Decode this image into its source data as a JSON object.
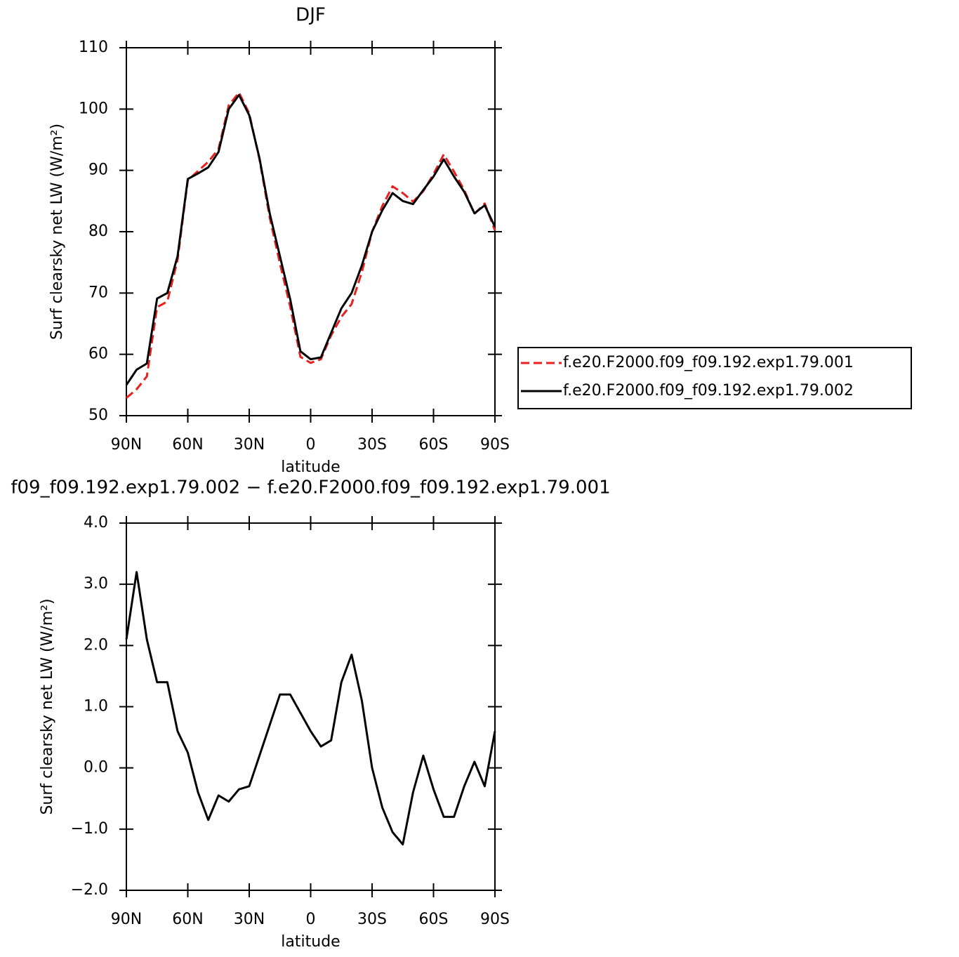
{
  "chart_data": [
    {
      "type": "line",
      "title": "DJF",
      "xlabel": "latitude",
      "ylabel": "Surf clearsky net LW (W/m²)",
      "x": [
        90,
        85,
        80,
        75,
        70,
        65,
        60,
        55,
        50,
        45,
        40,
        35,
        30,
        25,
        20,
        15,
        10,
        5,
        0,
        -5,
        -10,
        -15,
        -20,
        -25,
        -30,
        -35,
        -40,
        -45,
        -50,
        -55,
        -60,
        -65,
        -70,
        -75,
        -80,
        -85,
        -90
      ],
      "xlim": [
        90,
        -90
      ],
      "xticks": [
        {
          "value": 90,
          "label": "90N"
        },
        {
          "value": 60,
          "label": "60N"
        },
        {
          "value": 30,
          "label": "30N"
        },
        0,
        {
          "value": -30,
          "label": "30S"
        },
        {
          "value": -60,
          "label": "60S"
        },
        {
          "value": -90,
          "label": "90S"
        }
      ],
      "ylim": [
        50,
        110
      ],
      "yticks": [
        50,
        60,
        70,
        80,
        90,
        100,
        110
      ],
      "legend": "right",
      "series": [
        {
          "name": "f.e20.F2000.f09_f09.192.exp1.79.001",
          "color": "#e8201e",
          "dashed": true,
          "values": [
            52.9,
            54.3,
            56.4,
            67.7,
            68.6,
            75.4,
            88.4,
            89.9,
            91.4,
            93.5,
            100.6,
            102.7,
            99.3,
            91.8,
            82.3,
            74.8,
            67.8,
            59.6,
            58.6,
            59.2,
            63.1,
            66.1,
            68.2,
            73.4,
            80,
            84.2,
            87.4,
            86.3,
            84.9,
            86.6,
            89.4,
            92.6,
            89.8,
            86.8,
            82.9,
            84.6,
            80.2
          ]
        },
        {
          "name": "f.e20.F2000.f09_f09.192.exp1.79.002",
          "color": "#000000",
          "dashed": false,
          "values": [
            55.0,
            57.5,
            58.5,
            69.1,
            70,
            76,
            88.6,
            89.5,
            90.5,
            93,
            100,
            102.3,
            99,
            92,
            83,
            76,
            69,
            60.5,
            59.2,
            59.5,
            63.5,
            67.5,
            70,
            74.5,
            80,
            83.5,
            86.3,
            85.0,
            84.5,
            86.8,
            89,
            91.8,
            89,
            86.5,
            83,
            84.3,
            80.8
          ]
        }
      ]
    },
    {
      "type": "line",
      "title": "f09_f09.192.exp1.79.002 − f.e20.F2000.f09_f09.192.exp1.79.001",
      "xlabel": "latitude",
      "ylabel": "Surf clearsky net LW (W/m²)",
      "x": [
        90,
        85,
        80,
        75,
        70,
        65,
        60,
        55,
        50,
        45,
        40,
        35,
        30,
        25,
        20,
        15,
        10,
        5,
        0,
        -5,
        -10,
        -15,
        -20,
        -25,
        -30,
        -35,
        -40,
        -45,
        -50,
        -55,
        -60,
        -65,
        -70,
        -75,
        -80,
        -85,
        -90
      ],
      "xlim": [
        90,
        -90
      ],
      "xticks": [
        {
          "value": 90,
          "label": "90N"
        },
        {
          "value": 60,
          "label": "60N"
        },
        {
          "value": 30,
          "label": "30N"
        },
        0,
        {
          "value": -30,
          "label": "30S"
        },
        {
          "value": -60,
          "label": "60S"
        },
        {
          "value": -90,
          "label": "90S"
        }
      ],
      "ylim": [
        -2,
        4
      ],
      "yticks": [
        {
          "value": -2,
          "label": "−2.0"
        },
        {
          "value": -1,
          "label": "−1.0"
        },
        {
          "value": 0,
          "label": "0.0"
        },
        {
          "value": 1,
          "label": "1.0"
        },
        {
          "value": 2,
          "label": "2.0"
        },
        {
          "value": 3,
          "label": "3.0"
        },
        {
          "value": 4,
          "label": "4.0"
        }
      ],
      "color": "#000000",
      "values": [
        2.1,
        3.2,
        2.1,
        1.4,
        1.4,
        0.6,
        0.25,
        -0.4,
        -0.85,
        -0.45,
        -0.55,
        -0.35,
        -0.3,
        0.2,
        0.7,
        1.2,
        1.2,
        0.9,
        0.6,
        0.35,
        0.45,
        1.4,
        1.85,
        1.1,
        0.0,
        -0.65,
        -1.05,
        -1.25,
        -0.4,
        0.2,
        -0.35,
        -0.8,
        -0.8,
        -0.3,
        0.1,
        -0.3,
        0.6
      ]
    }
  ]
}
